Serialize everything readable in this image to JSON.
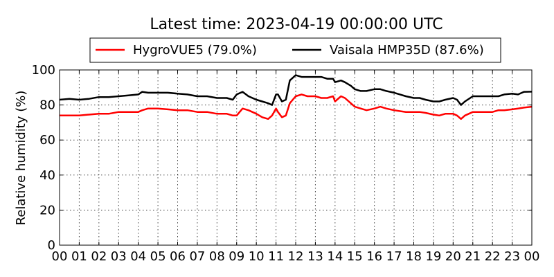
{
  "chart_data": {
    "type": "line",
    "title": "Latest time: 2023-04-19 00:00:00 UTC",
    "xlabel": "",
    "ylabel": "Relative humidity (%)",
    "xlim": [
      0,
      24
    ],
    "ylim": [
      0,
      100
    ],
    "x_ticks": [
      0,
      1,
      2,
      3,
      4,
      5,
      6,
      7,
      8,
      9,
      10,
      11,
      12,
      13,
      14,
      15,
      16,
      17,
      18,
      19,
      20,
      21,
      22,
      23,
      24
    ],
    "x_tick_labels": [
      "00",
      "01",
      "02",
      "03",
      "04",
      "05",
      "06",
      "07",
      "08",
      "09",
      "10",
      "11",
      "12",
      "13",
      "14",
      "15",
      "16",
      "17",
      "18",
      "19",
      "20",
      "21",
      "22",
      "23",
      "00"
    ],
    "y_ticks": [
      0,
      20,
      40,
      60,
      80,
      100
    ],
    "y_tick_labels": [
      "0",
      "20",
      "40",
      "60",
      "80",
      "100"
    ],
    "grid": true,
    "legend_position": "top",
    "series": [
      {
        "name": "HygroVUE5 (79.0%)",
        "color": "#ff0000",
        "x": [
          0,
          0.5,
          1,
          1.5,
          2,
          2.5,
          3,
          3.5,
          4,
          4.2,
          4.5,
          5,
          5.5,
          6,
          6.5,
          7,
          7.5,
          8,
          8.5,
          8.8,
          9,
          9.3,
          9.6,
          10,
          10.3,
          10.6,
          10.8,
          11,
          11.1,
          11.3,
          11.5,
          11.7,
          12,
          12.3,
          12.6,
          13,
          13.3,
          13.6,
          13.9,
          14,
          14.3,
          14.5,
          14.8,
          15,
          15.3,
          15.6,
          16,
          16.3,
          16.6,
          17,
          17.3,
          17.6,
          18,
          18.3,
          18.6,
          19,
          19.3,
          19.6,
          20,
          20.2,
          20.4,
          20.6,
          21,
          21.3,
          21.6,
          22,
          22.3,
          22.6,
          23,
          23.3,
          23.6,
          24
        ],
        "values": [
          74,
          74,
          74,
          74.5,
          75,
          75,
          76,
          76,
          76,
          77,
          78,
          78,
          77.5,
          77,
          77,
          76,
          76,
          75,
          75,
          74,
          74,
          78,
          77,
          75,
          73,
          72,
          74,
          78,
          76,
          73,
          74,
          81,
          85,
          86,
          85,
          85,
          84,
          84,
          85,
          82,
          85,
          84,
          81,
          79,
          78,
          77,
          78,
          79,
          78,
          77,
          76.5,
          76,
          76,
          76,
          75.5,
          74.5,
          74,
          75,
          75,
          74,
          72,
          74,
          76,
          76,
          76,
          76,
          77,
          77,
          77.5,
          78,
          78.5,
          79
        ]
      },
      {
        "name": "Vaisala HMP35D (87.6%)",
        "color": "#000000",
        "x": [
          0,
          0.5,
          1,
          1.5,
          2,
          2.5,
          3,
          3.5,
          4,
          4.2,
          4.5,
          5,
          5.5,
          6,
          6.5,
          7,
          7.5,
          8,
          8.5,
          8.8,
          9,
          9.3,
          9.6,
          10,
          10.3,
          10.6,
          10.8,
          11,
          11.1,
          11.3,
          11.5,
          11.7,
          12,
          12.3,
          12.6,
          13,
          13.3,
          13.6,
          13.9,
          14,
          14.3,
          14.5,
          14.8,
          15,
          15.3,
          15.6,
          16,
          16.3,
          16.6,
          17,
          17.3,
          17.6,
          18,
          18.3,
          18.6,
          19,
          19.3,
          19.6,
          20,
          20.2,
          20.4,
          20.6,
          21,
          21.3,
          21.6,
          22,
          22.3,
          22.6,
          23,
          23.3,
          23.6,
          24
        ],
        "values": [
          83,
          83.5,
          83,
          83.5,
          84.5,
          84.5,
          85,
          85.5,
          86,
          87.5,
          87,
          87,
          87,
          86.5,
          86,
          85,
          85,
          84,
          84,
          83,
          86,
          87.5,
          85,
          83,
          82,
          81,
          80,
          86,
          86,
          82,
          83,
          94,
          97,
          96,
          96,
          96,
          96,
          95,
          95,
          93,
          94,
          93,
          91,
          89,
          88,
          88,
          89,
          89,
          88,
          87,
          86,
          85,
          84,
          84,
          83,
          82,
          82,
          83,
          84,
          83,
          80,
          82,
          85,
          85,
          85,
          85,
          85,
          86,
          86.5,
          86,
          87.5,
          87.6
        ]
      }
    ]
  }
}
